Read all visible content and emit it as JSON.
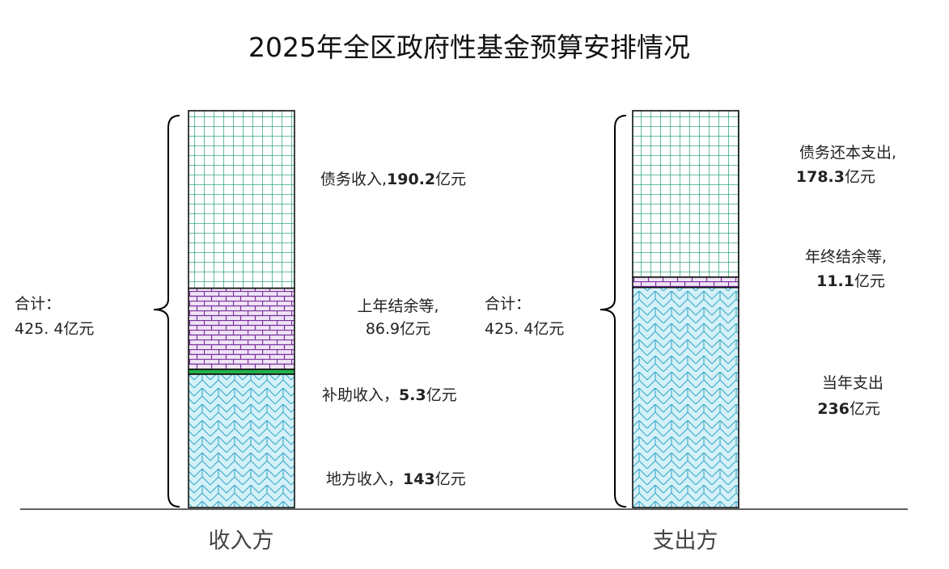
{
  "chart_data": {
    "type": "bar",
    "stacked": true,
    "title": "2025年全区政府性基金预算安排情况",
    "unit": "亿元",
    "bars": [
      {
        "category": "收入方",
        "total_label": "合计：",
        "total_value": "425. 4亿元",
        "segments": [
          {
            "name": "地方收入",
            "value": 143,
            "label": "地方收入，",
            "value_text": "143",
            "unit_text": "亿元",
            "pattern": "hex-blue"
          },
          {
            "name": "补助收入",
            "value": 5.3,
            "label": "补助收入，",
            "value_text": "5.3",
            "unit_text": "亿元",
            "pattern": "solid-green"
          },
          {
            "name": "上年结余等",
            "value": 86.9,
            "label": "上年结余等,",
            "value_text": "86.9亿元",
            "unit_text": "",
            "pattern": "brick-purple"
          },
          {
            "name": "债务收入",
            "value": 190.2,
            "label": "债务收入,",
            "value_text": "190.2",
            "unit_text": "亿元",
            "pattern": "grid-green"
          }
        ]
      },
      {
        "category": "支出方",
        "total_label": "合计：",
        "total_value": "425. 4亿元",
        "segments": [
          {
            "name": "当年支出",
            "value": 236,
            "label": "当年支出",
            "value_text": "236",
            "unit_text": "亿元",
            "pattern": "hex-blue"
          },
          {
            "name": "年终结余等",
            "value": 11.1,
            "label": "年终结余等,",
            "value_text": "11.1",
            "unit_text": "亿元",
            "pattern": "brick-purple"
          },
          {
            "name": "债务还本支出",
            "value": 178.3,
            "label": "债务还本支出,",
            "value_text": "178.3",
            "unit_text": "亿元",
            "pattern": "grid-green"
          }
        ]
      }
    ],
    "ylim": [
      0,
      425.4
    ],
    "grid": false,
    "legend": "none"
  },
  "colors": {
    "hex_line": "#3aa7c9",
    "hex_fill": "#d4f1f8",
    "grid_line": "#0f9a63",
    "brick_line": "#7a2f9c",
    "brick_fill": "#efe4f5",
    "solid_green": "#22b14c",
    "baseline": "#000000"
  }
}
